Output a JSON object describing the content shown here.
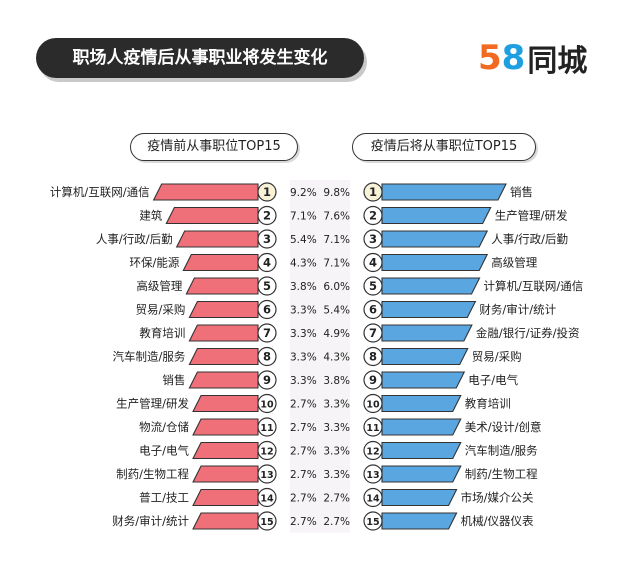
{
  "header": {
    "title": "职场人疫情后从事职业将发生变化"
  },
  "logo": {
    "digit5": "5",
    "digit8": "8",
    "text": "同城",
    "color5": "#f26a21",
    "color8": "#1e9fe2"
  },
  "colors": {
    "before_bar": "#f0707a",
    "after_bar": "#5aa6e0"
  },
  "chart_data": [
    {
      "type": "bar",
      "title": "疫情前从事职位TOP15",
      "unit": "%",
      "categories": [
        "计算机/互联网/通信",
        "建筑",
        "人事/行政/后勤",
        "环保/能源",
        "高级管理",
        "贸易/采购",
        "教育培训",
        "汽车制造/服务",
        "销售",
        "生产管理/研发",
        "物流/仓储",
        "电子/电气",
        "制药/生物工程",
        "普工/技工",
        "财务/审计/统计"
      ],
      "ranks": [
        "1",
        "2",
        "3",
        "4",
        "5",
        "6",
        "7",
        "8",
        "9",
        "10",
        "11",
        "12",
        "13",
        "14",
        "15"
      ],
      "values": [
        9.2,
        7.1,
        5.4,
        4.3,
        3.8,
        3.3,
        3.3,
        3.3,
        3.3,
        2.7,
        2.7,
        2.7,
        2.7,
        2.7,
        2.7
      ],
      "value_labels": [
        "9.2%",
        "7.1%",
        "5.4%",
        "4.3%",
        "3.8%",
        "3.3%",
        "3.3%",
        "3.3%",
        "3.3%",
        "2.7%",
        "2.7%",
        "2.7%",
        "2.7%",
        "2.7%",
        "2.7%"
      ]
    },
    {
      "type": "bar",
      "title": "疫情后将从事职位TOP15",
      "unit": "%",
      "categories": [
        "销售",
        "生产管理/研发",
        "人事/行政/后勤",
        "高级管理",
        "计算机/互联网/通信",
        "财务/审计/统计",
        "金融/银行/证券/投资",
        "贸易/采购",
        "电子/电气",
        "教育培训",
        "美术/设计/创意",
        "汽车制造/服务",
        "制药/生物工程",
        "市场/媒介公关",
        "机械/仪器仪表"
      ],
      "ranks": [
        "1",
        "2",
        "3",
        "4",
        "5",
        "6",
        "7",
        "8",
        "9",
        "10",
        "11",
        "12",
        "13",
        "14",
        "15"
      ],
      "values": [
        9.8,
        7.6,
        7.1,
        7.1,
        6.0,
        5.4,
        4.9,
        4.3,
        3.8,
        3.3,
        3.3,
        3.3,
        3.3,
        2.7,
        2.7
      ],
      "value_labels": [
        "9.8%",
        "7.6%",
        "7.1%",
        "7.1%",
        "6.0%",
        "5.4%",
        "4.9%",
        "4.3%",
        "3.8%",
        "3.3%",
        "3.3%",
        "3.3%",
        "3.3%",
        "2.7%",
        "2.7%"
      ]
    }
  ]
}
